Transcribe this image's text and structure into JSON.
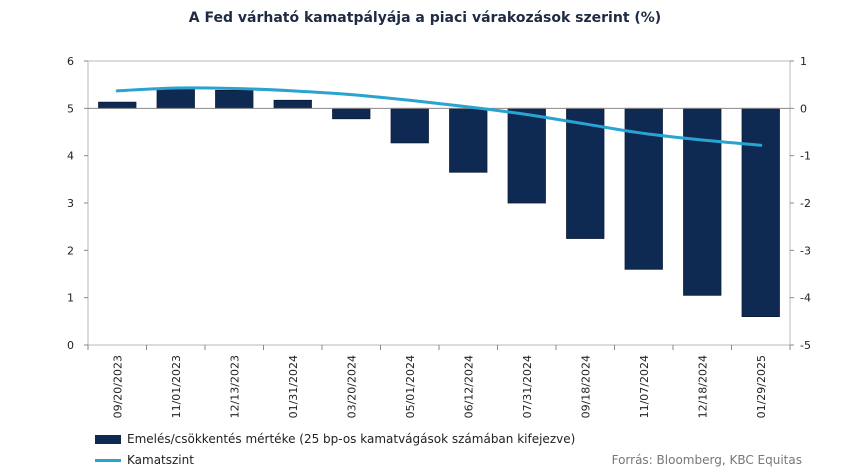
{
  "chart_data": {
    "type": "bar+line",
    "title": "A Fed várható kamatpályája a piaci várakozások szerint (%)",
    "categories": [
      "09/20/2023",
      "11/01/2023",
      "12/13/2023",
      "01/31/2024",
      "03/20/2024",
      "05/01/2024",
      "06/12/2024",
      "07/31/2024",
      "09/18/2024",
      "11/07/2024",
      "12/18/2024",
      "01/29/2025"
    ],
    "series": [
      {
        "name": "Emelés/csökkentés mértéke (25 bp-os kamatvágások számában kifejezve)",
        "type": "bar",
        "axis": "right",
        "color": "#0e2a52",
        "values": [
          0.13,
          0.42,
          0.38,
          0.17,
          -0.22,
          -0.73,
          -1.35,
          -2.0,
          -2.75,
          -3.4,
          -3.95,
          -4.4
        ]
      },
      {
        "name": "Kamatszint",
        "type": "line",
        "axis": "left",
        "color": "#2aa3d0",
        "values": [
          5.37,
          5.43,
          5.42,
          5.37,
          5.29,
          5.17,
          5.03,
          4.87,
          4.67,
          4.47,
          4.33,
          4.22
        ]
      }
    ],
    "yleft": {
      "min": 0,
      "max": 6,
      "ticks": [
        "0",
        "1",
        "2",
        "3",
        "4",
        "5",
        "6"
      ]
    },
    "yright": {
      "min": -5,
      "max": 1,
      "ticks": [
        "-5",
        "-4",
        "-3",
        "-2",
        "-1",
        "0",
        "1"
      ]
    },
    "grid": false,
    "legend_position": "bottom-left"
  },
  "source": "Forrás: Bloomberg, KBC Equitas"
}
